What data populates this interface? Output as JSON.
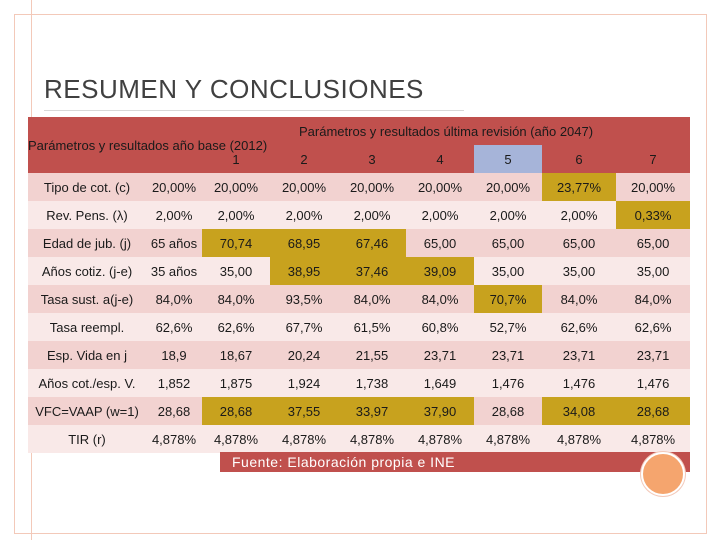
{
  "title": "RESUMEN Y CONCLUSIONES",
  "header": {
    "left_label": "Parámetros y resultados año base (2012)",
    "right_label": "Parámetros y resultados última revisión (año 2047)",
    "columns": [
      "1",
      "2",
      "3",
      "4",
      "5",
      "6",
      "7"
    ]
  },
  "rows": [
    {
      "label": "Tipo de cot. (c)",
      "base": "20,00%",
      "values": [
        "20,00%",
        "20,00%",
        "20,00%",
        "20,00%",
        "20,00%",
        "23,77%",
        "20,00%"
      ]
    },
    {
      "label": "Rev. Pens. (λ)",
      "base": "2,00%",
      "values": [
        "2,00%",
        "2,00%",
        "2,00%",
        "2,00%",
        "2,00%",
        "2,00%",
        "0,33%"
      ]
    },
    {
      "label": "Edad de jub. (j)",
      "base": "65 años",
      "values": [
        "70,74",
        "68,95",
        "67,46",
        "65,00",
        "65,00",
        "65,00",
        "65,00"
      ]
    },
    {
      "label": "Años cotiz. (j-e)",
      "base": "35 años",
      "values": [
        "35,00",
        "38,95",
        "37,46",
        "39,09",
        "35,00",
        "35,00",
        "35,00"
      ]
    },
    {
      "label": "Tasa sust. a(j-e)",
      "base": "84,0%",
      "values": [
        "84,0%",
        "93,5%",
        "84,0%",
        "84,0%",
        "70,7%",
        "84,0%",
        "84,0%"
      ]
    },
    {
      "label": "Tasa reempl.",
      "base": "62,6%",
      "values": [
        "62,6%",
        "67,7%",
        "61,5%",
        "60,8%",
        "52,7%",
        "62,6%",
        "62,6%"
      ]
    },
    {
      "label": "Esp. Vida en j",
      "base": "18,9",
      "values": [
        "18,67",
        "20,24",
        "21,55",
        "23,71",
        "23,71",
        "23,71",
        "23,71"
      ]
    },
    {
      "label": "Años cot./esp. V.",
      "base": "1,852",
      "values": [
        "1,875",
        "1,924",
        "1,738",
        "1,649",
        "1,476",
        "1,476",
        "1,476"
      ]
    },
    {
      "label": "VFC=VAAP (w=1)",
      "base": "28,68",
      "values": [
        "28,68",
        "37,55",
        "33,97",
        "37,90",
        "28,68",
        "34,08",
        "28,68"
      ]
    },
    {
      "label": "TIR (r)",
      "base": "4,878%",
      "values": [
        "4,878%",
        "4,878%",
        "4,878%",
        "4,878%",
        "4,878%",
        "4,878%",
        "4,878%"
      ]
    }
  ],
  "footer": "Fuente: Elaboración propia e INE",
  "colors": {
    "header": "#c0504d",
    "highlight": "#c8a21e",
    "selected_column": "#a6b4d9"
  }
}
